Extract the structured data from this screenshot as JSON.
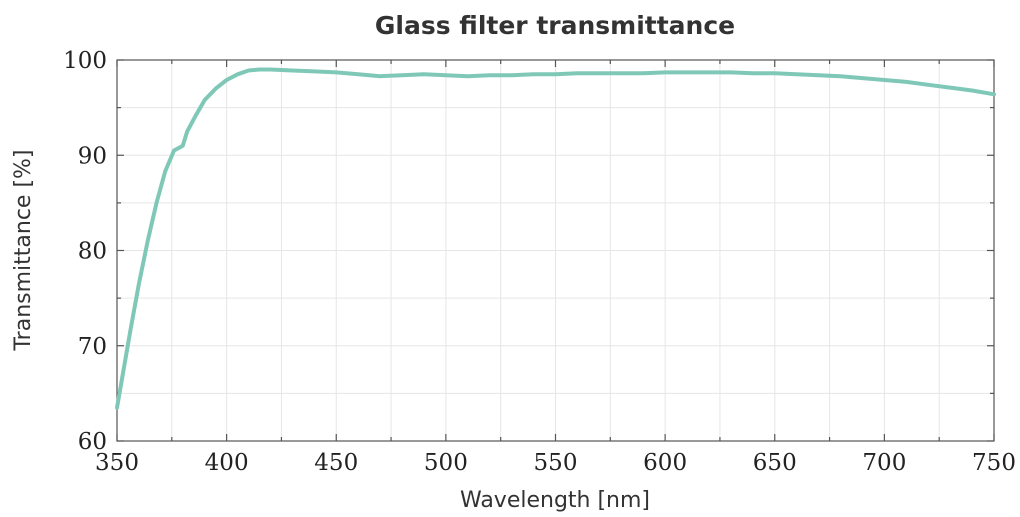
{
  "chart_data": {
    "type": "line",
    "title": "Glass filter transmittance",
    "xlabel": "Wavelength [nm]",
    "ylabel": "Transmittance [%]",
    "xlim": [
      350,
      750
    ],
    "ylim": [
      60,
      100
    ],
    "xticks": [
      350,
      400,
      450,
      500,
      550,
      600,
      650,
      700,
      750
    ],
    "yticks": [
      60,
      70,
      80,
      90,
      100
    ],
    "grid": true,
    "line_color": "#7fc8b8",
    "series": [
      {
        "x": [
          350,
          353,
          356,
          360,
          364,
          368,
          372,
          376,
          380,
          382,
          386,
          390,
          395,
          400,
          405,
          410,
          415,
          420,
          430,
          440,
          450,
          460,
          470,
          480,
          490,
          500,
          510,
          520,
          530,
          540,
          550,
          560,
          570,
          580,
          590,
          600,
          610,
          620,
          630,
          640,
          650,
          660,
          670,
          680,
          690,
          700,
          710,
          720,
          730,
          740,
          750
        ],
        "y": [
          63.5,
          67.5,
          71.5,
          76.5,
          81.0,
          85.0,
          88.3,
          90.5,
          91.0,
          92.5,
          94.2,
          95.8,
          97.0,
          97.9,
          98.5,
          98.9,
          99.0,
          99.0,
          98.9,
          98.8,
          98.7,
          98.5,
          98.3,
          98.4,
          98.5,
          98.4,
          98.3,
          98.4,
          98.4,
          98.5,
          98.5,
          98.6,
          98.6,
          98.6,
          98.6,
          98.7,
          98.7,
          98.7,
          98.7,
          98.6,
          98.6,
          98.5,
          98.4,
          98.3,
          98.1,
          97.9,
          97.7,
          97.4,
          97.1,
          96.8,
          96.4
        ]
      }
    ]
  }
}
